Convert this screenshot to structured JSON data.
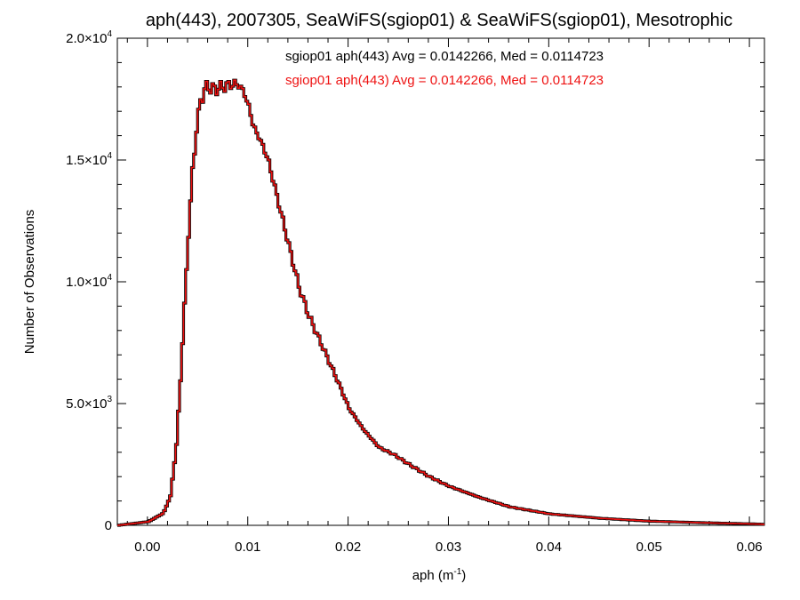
{
  "chart_data": {
    "type": "line",
    "title": "aph(443), 2007305, SeaWiFS(sgiop01) & SeaWiFS(sgiop01), Mesotrophic",
    "xlabel_main": "aph (m",
    "xlabel_sup": "-1",
    "xlabel_tail": ")",
    "ylabel": "Number of Observations",
    "xlim": [
      -0.003,
      0.0615
    ],
    "ylim": [
      0,
      20000
    ],
    "grid": false,
    "x_ticks": [
      {
        "value": 0.0,
        "label": "0.00"
      },
      {
        "value": 0.01,
        "label": "0.01"
      },
      {
        "value": 0.02,
        "label": "0.02"
      },
      {
        "value": 0.03,
        "label": "0.03"
      },
      {
        "value": 0.04,
        "label": "0.04"
      },
      {
        "value": 0.05,
        "label": "0.05"
      },
      {
        "value": 0.06,
        "label": "0.06"
      }
    ],
    "y_ticks": [
      {
        "value": 0,
        "mantissa": "0",
        "exponent": ""
      },
      {
        "value": 5000,
        "mantissa": "5.0×10",
        "exponent": "3"
      },
      {
        "value": 10000,
        "mantissa": "1.0×10",
        "exponent": "4"
      },
      {
        "value": 15000,
        "mantissa": "1.5×10",
        "exponent": "4"
      },
      {
        "value": 20000,
        "mantissa": "2.0×10",
        "exponent": "4"
      }
    ],
    "stats": [
      {
        "text": "sgiop01 aph(443) Avg = 0.0142266, Med = 0.0114723",
        "color": "#000000"
      },
      {
        "text": "sgiop01 aph(443) Avg = 0.0142266, Med = 0.0114723",
        "color": "#ee1111"
      }
    ],
    "series": [
      {
        "color_outline": "#000000",
        "color_line": "#ee1111",
        "x": [
          -0.003,
          0.0,
          0.0015,
          0.0022,
          0.0028,
          0.0032,
          0.0036,
          0.004,
          0.0044,
          0.0048,
          0.0052,
          0.0056,
          0.006,
          0.0066,
          0.0074,
          0.0082,
          0.009,
          0.0096,
          0.01,
          0.0104,
          0.0108,
          0.0114,
          0.012,
          0.013,
          0.014,
          0.015,
          0.016,
          0.0175,
          0.019,
          0.02,
          0.0215,
          0.023,
          0.0245,
          0.026,
          0.028,
          0.03,
          0.033,
          0.036,
          0.04,
          0.045,
          0.05,
          0.055,
          0.06,
          0.0615
        ],
        "y": [
          0,
          150,
          500,
          1200,
          3300,
          6000,
          9000,
          12000,
          14500,
          16300,
          17400,
          17900,
          18000,
          17900,
          18000,
          18100,
          18100,
          17700,
          17200,
          16500,
          16100,
          15600,
          14900,
          13200,
          11500,
          9800,
          8600,
          7200,
          5800,
          4800,
          3900,
          3200,
          2900,
          2500,
          2000,
          1600,
          1150,
          760,
          470,
          290,
          170,
          110,
          60,
          40
        ]
      }
    ]
  }
}
